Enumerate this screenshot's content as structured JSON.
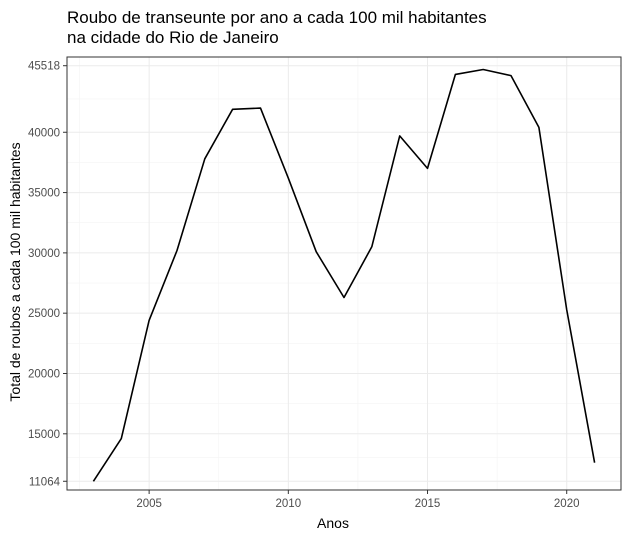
{
  "chart_data": {
    "type": "line",
    "title_lines": [
      "Roubo de transeunte por ano a cada 100 mil habitantes",
      "na cidade do Rio de Janeiro"
    ],
    "xlabel": "Anos",
    "ylabel": "Total de roubos a cada 100 mil habitantes",
    "x_ticks": [
      2005,
      2010,
      2015,
      2020
    ],
    "y_ticks": [
      11064,
      15000,
      20000,
      25000,
      30000,
      35000,
      40000,
      45518
    ],
    "xlim": [
      2002.05,
      2021.95
    ],
    "ylim": [
      10340,
      46240
    ],
    "grid": true,
    "series": [
      {
        "x": [
          2003,
          2004,
          2005,
          2006,
          2007,
          2008,
          2009,
          2010,
          2011,
          2012,
          2013,
          2014,
          2015,
          2016,
          2017,
          2018,
          2019,
          2020,
          2021
        ],
        "y": [
          11064,
          14600,
          24400,
          30200,
          37800,
          41900,
          42000,
          36200,
          30100,
          26300,
          30500,
          39700,
          37000,
          44800,
          45200,
          44700,
          40400,
          25300,
          12600
        ],
        "color": "#000000"
      }
    ]
  }
}
